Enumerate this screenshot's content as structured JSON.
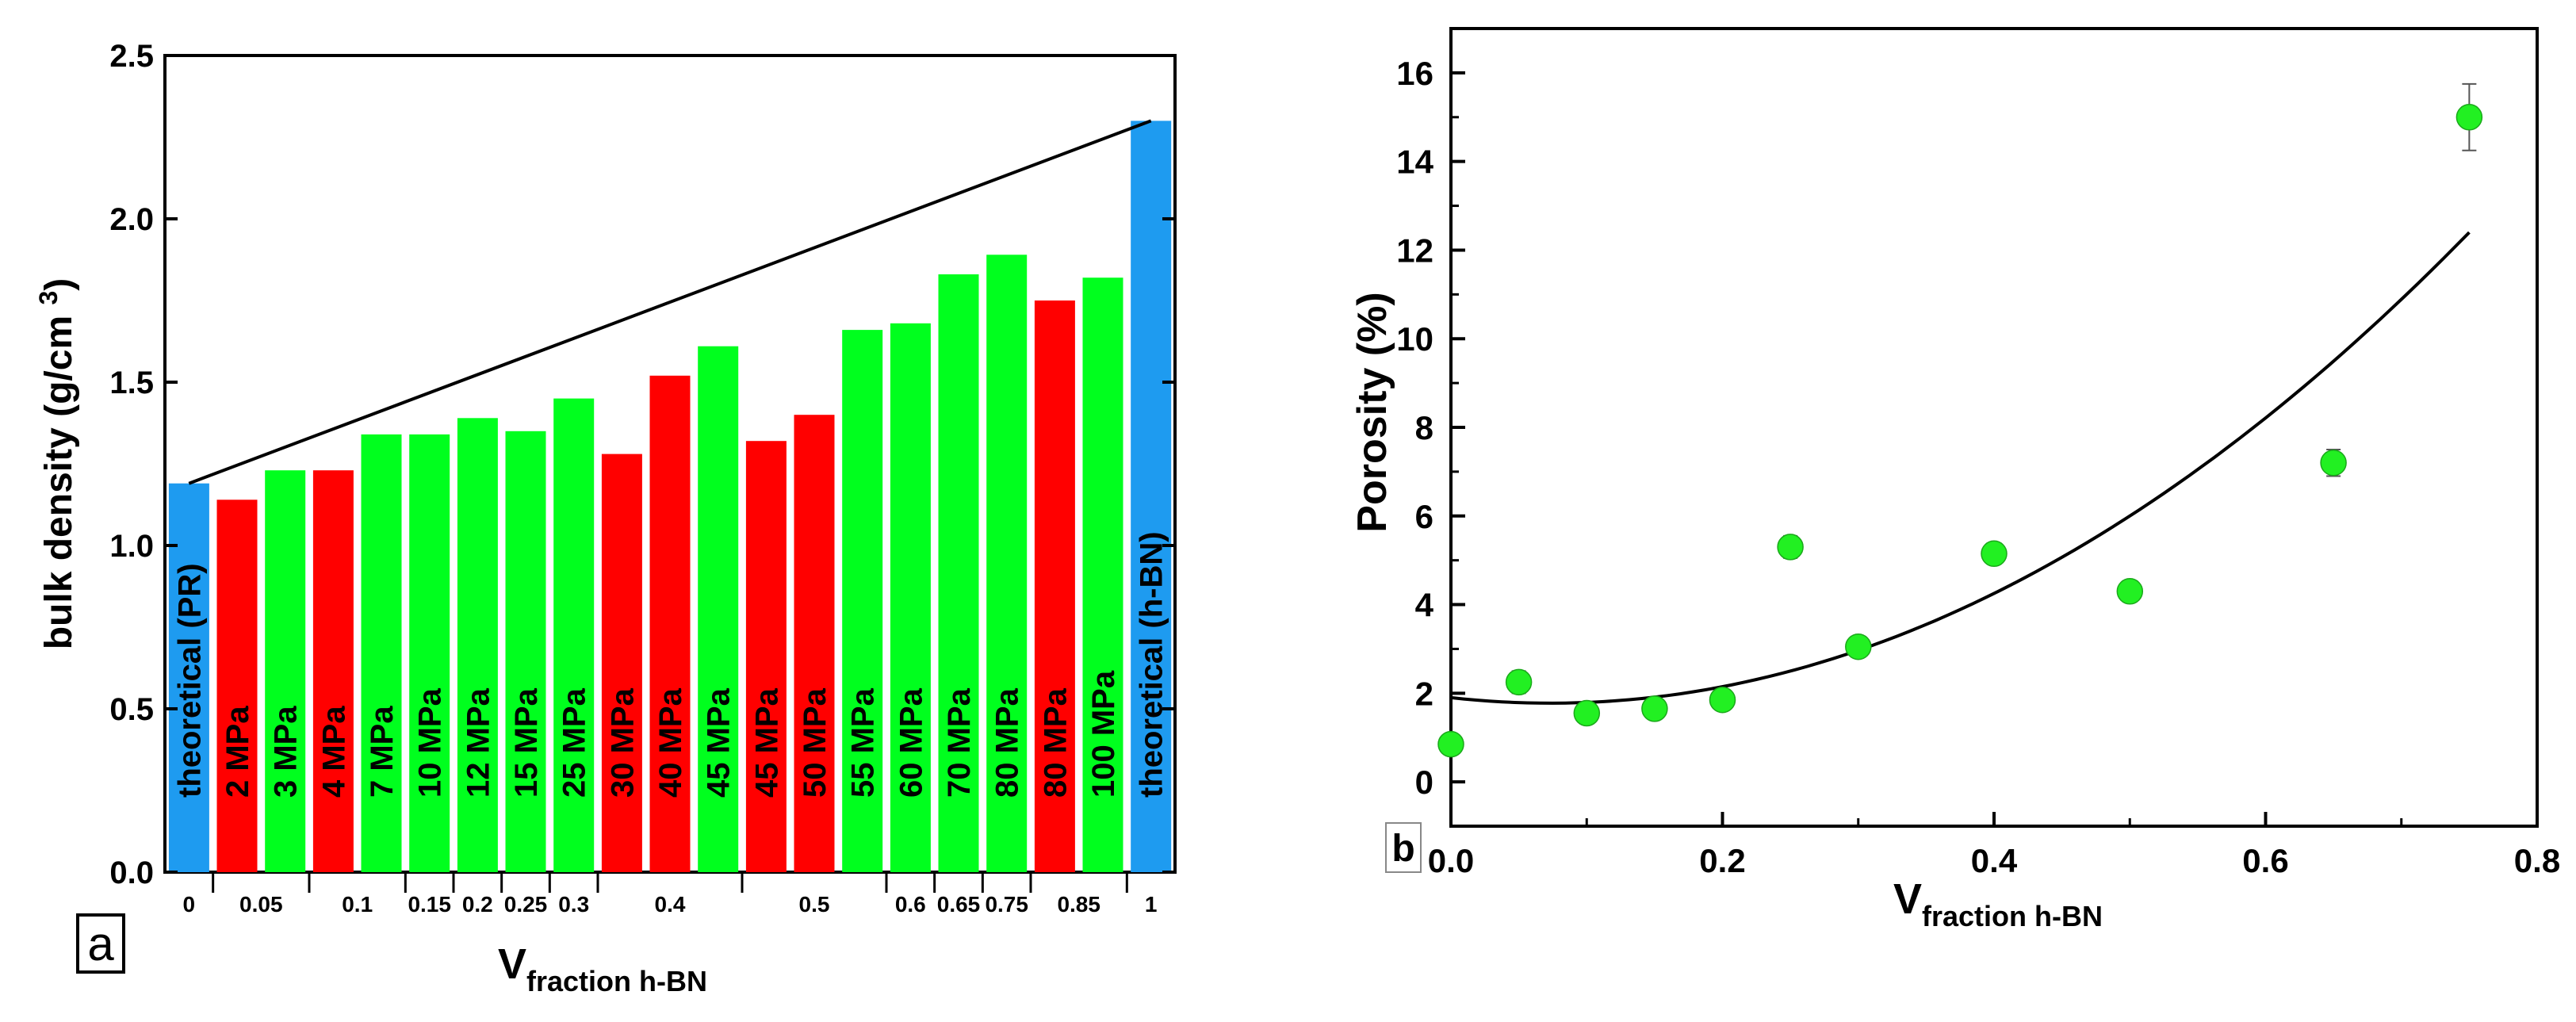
{
  "colors": {
    "theoretical": "#1e9bf0",
    "red": "#ff0000",
    "green": "#00ff1e",
    "point": "#22f022",
    "axis": "#000000"
  },
  "chart_data": [
    {
      "panel": "a",
      "type": "bar",
      "xlabel_main": "V",
      "xlabel_sub": "fraction h-BN",
      "ylabel_main": "bulk density (g/cm ",
      "ylabel_sup": "3",
      "ylabel_end": ")",
      "ylim": [
        0.0,
        2.5
      ],
      "yticks": [
        {
          "value": 0.0,
          "label": "0.0"
        },
        {
          "value": 0.5,
          "label": "0.5"
        },
        {
          "value": 1.0,
          "label": "1.0"
        },
        {
          "value": 1.5,
          "label": "1.5"
        },
        {
          "value": 2.0,
          "label": "2.0"
        },
        {
          "value": 2.5,
          "label": "2.5"
        }
      ],
      "bars": [
        {
          "label": "theoretical (PR)",
          "value": 1.19,
          "color": "theoretical"
        },
        {
          "label": "2 MPa",
          "value": 1.14,
          "color": "red"
        },
        {
          "label": "3 MPa",
          "value": 1.23,
          "color": "green"
        },
        {
          "label": "4 MPa",
          "value": 1.23,
          "color": "red"
        },
        {
          "label": "7 MPa",
          "value": 1.34,
          "color": "green"
        },
        {
          "label": "10 MPa",
          "value": 1.34,
          "color": "green"
        },
        {
          "label": "12 MPa",
          "value": 1.39,
          "color": "green"
        },
        {
          "label": "15 MPa",
          "value": 1.35,
          "color": "green"
        },
        {
          "label": "25 MPa",
          "value": 1.45,
          "color": "green"
        },
        {
          "label": "30 MPa",
          "value": 1.28,
          "color": "red"
        },
        {
          "label": "40 MPa",
          "value": 1.52,
          "color": "red"
        },
        {
          "label": "45 MPa",
          "value": 1.61,
          "color": "green"
        },
        {
          "label": "45 MPa",
          "value": 1.32,
          "color": "red"
        },
        {
          "label": "50 MPa",
          "value": 1.4,
          "color": "red"
        },
        {
          "label": "55 MPa",
          "value": 1.66,
          "color": "green"
        },
        {
          "label": "60 MPa",
          "value": 1.68,
          "color": "green"
        },
        {
          "label": "70 MPa",
          "value": 1.83,
          "color": "green"
        },
        {
          "label": "80 MPa",
          "value": 1.89,
          "color": "green"
        },
        {
          "label": "80 MPa",
          "value": 1.75,
          "color": "red"
        },
        {
          "label": "100 MPa",
          "value": 1.82,
          "color": "green"
        },
        {
          "label": "theoretical (h-BN)",
          "value": 2.3,
          "color": "theoretical"
        }
      ],
      "xgroups": [
        {
          "label": "0",
          "start": 0,
          "end": 0
        },
        {
          "label": "0.05",
          "start": 1,
          "end": 2
        },
        {
          "label": "0.1",
          "start": 3,
          "end": 4
        },
        {
          "label": "0.15",
          "start": 5,
          "end": 5
        },
        {
          "label": "0.2",
          "start": 6,
          "end": 6
        },
        {
          "label": "0.25",
          "start": 7,
          "end": 7
        },
        {
          "label": "0.3",
          "start": 8,
          "end": 8
        },
        {
          "label": "0.4",
          "start": 9,
          "end": 11
        },
        {
          "label": "0.5",
          "start": 12,
          "end": 14
        },
        {
          "label": "0.6",
          "start": 15,
          "end": 15
        },
        {
          "label": "0.65",
          "start": 16,
          "end": 16
        },
        {
          "label": "0.75",
          "start": 17,
          "end": 17
        },
        {
          "label": "0.85",
          "start": 18,
          "end": 19
        },
        {
          "label": "1",
          "start": 20,
          "end": 20
        }
      ],
      "theory_line": {
        "from": 1.19,
        "to": 2.3
      }
    },
    {
      "panel": "b",
      "type": "scatter",
      "xlabel_main": "V",
      "xlabel_sub": "fraction h-BN",
      "ylabel": "Porosity (%)",
      "xlim": [
        0.0,
        0.8
      ],
      "ylim": [
        -1.0,
        17.0
      ],
      "xticks": [
        {
          "value": 0.0,
          "label": "0.0"
        },
        {
          "value": 0.2,
          "label": "0.2"
        },
        {
          "value": 0.4,
          "label": "0.4"
        },
        {
          "value": 0.6,
          "label": "0.6"
        },
        {
          "value": 0.8,
          "label": "0.8"
        }
      ],
      "yticks": [
        {
          "value": 0,
          "label": "0"
        },
        {
          "value": 2,
          "label": "2"
        },
        {
          "value": 4,
          "label": "4"
        },
        {
          "value": 6,
          "label": "6"
        },
        {
          "value": 8,
          "label": "8"
        },
        {
          "value": 10,
          "label": "10"
        },
        {
          "value": 12,
          "label": "12"
        },
        {
          "value": 14,
          "label": "14"
        },
        {
          "value": 16,
          "label": "16"
        }
      ],
      "points": [
        {
          "x": 0.0,
          "y": 0.85,
          "err": 0.2
        },
        {
          "x": 0.05,
          "y": 2.25,
          "err": 0.25
        },
        {
          "x": 0.1,
          "y": 1.55,
          "err": 0.2
        },
        {
          "x": 0.15,
          "y": 1.65,
          "err": 0.2
        },
        {
          "x": 0.2,
          "y": 1.85,
          "err": 0.2
        },
        {
          "x": 0.25,
          "y": 5.3,
          "err": 0.25
        },
        {
          "x": 0.3,
          "y": 3.05,
          "err": 0.2
        },
        {
          "x": 0.4,
          "y": 5.15,
          "err": 0.2
        },
        {
          "x": 0.5,
          "y": 4.3,
          "err": 0.2
        },
        {
          "x": 0.65,
          "y": 7.2,
          "err": 0.3
        },
        {
          "x": 0.75,
          "y": 15.0,
          "err": 0.75
        }
      ],
      "fit": {
        "type": "quadratic",
        "x_range": [
          0.0,
          0.75
        ],
        "coefficients": [
          1.9,
          -3.4,
          23.2
        ]
      }
    }
  ]
}
